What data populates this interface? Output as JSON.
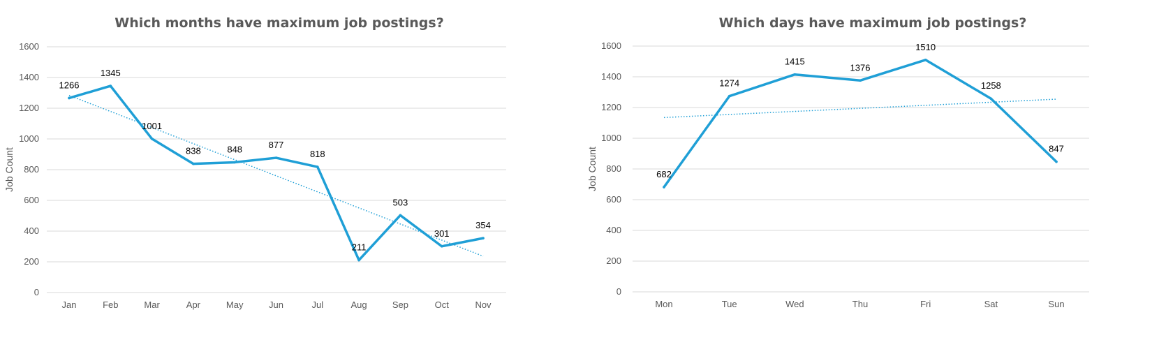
{
  "colors": {
    "series": "#1f9fd6",
    "grid": "#d9d9d9",
    "text": "#595959",
    "title": "#595959"
  },
  "chart_data": [
    {
      "type": "line",
      "title": "Which months have maximum job postings?",
      "xlabel": "",
      "ylabel": "Job Count",
      "ylim": [
        0,
        1600
      ],
      "yticks": [
        0,
        200,
        400,
        600,
        800,
        1000,
        1200,
        1400,
        1600
      ],
      "grid": true,
      "trendline": "linear",
      "categories": [
        "Jan",
        "Feb",
        "Mar",
        "Apr",
        "May",
        "Jun",
        "Jul",
        "Aug",
        "Sep",
        "Oct",
        "Nov"
      ],
      "values": [
        1266,
        1345,
        1001,
        838,
        848,
        877,
        818,
        211,
        503,
        301,
        354
      ],
      "data_labels": [
        "1266",
        "1345",
        "1001",
        "838",
        "848",
        "877",
        "818",
        "211",
        "503",
        "301",
        "354"
      ]
    },
    {
      "type": "line",
      "title": "Which days have maximum job postings?",
      "xlabel": "",
      "ylabel": "Job Count",
      "ylim": [
        0,
        1600
      ],
      "yticks": [
        0,
        200,
        400,
        600,
        800,
        1000,
        1200,
        1400,
        1600
      ],
      "grid": true,
      "trendline": "linear",
      "categories": [
        "Mon",
        "Tue",
        "Wed",
        "Thu",
        "Fri",
        "Sat",
        "Sun"
      ],
      "values": [
        682,
        1274,
        1415,
        1376,
        1510,
        1258,
        847
      ],
      "data_labels": [
        "682",
        "1274",
        "1415",
        "1376",
        "1510",
        "1258",
        "847"
      ]
    }
  ]
}
